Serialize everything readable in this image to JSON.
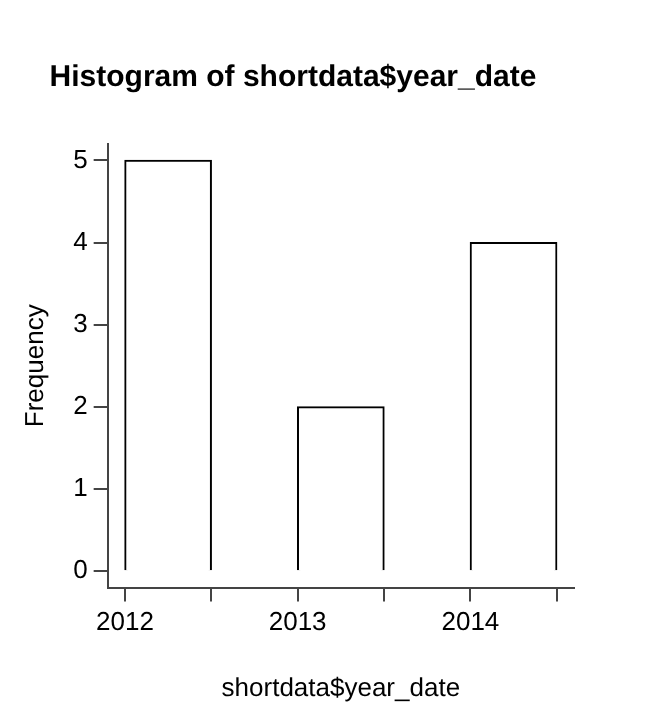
{
  "chart_data": {
    "type": "histogram",
    "title": "Histogram of shortdata$year_date",
    "xlabel": "shortdata$year_date",
    "ylabel": "Frequency",
    "bins": [
      2012,
      2012.5,
      2013,
      2013.5,
      2014,
      2014.5
    ],
    "values": [
      5,
      0,
      2,
      0,
      4
    ],
    "color": "#ffffff",
    "xlim": [
      2011.9,
      2014.6
    ],
    "xticks": [
      2012,
      {
        "value": 2012.5,
        "label": null
      },
      2013,
      {
        "value": 2013.5,
        "label": null
      },
      2014,
      {
        "value": 2014.5,
        "label": null
      }
    ],
    "ylim": [
      -0.2,
      5.2
    ],
    "yticks": [
      0,
      1,
      2,
      3,
      4,
      5
    ],
    "grid": false
  }
}
